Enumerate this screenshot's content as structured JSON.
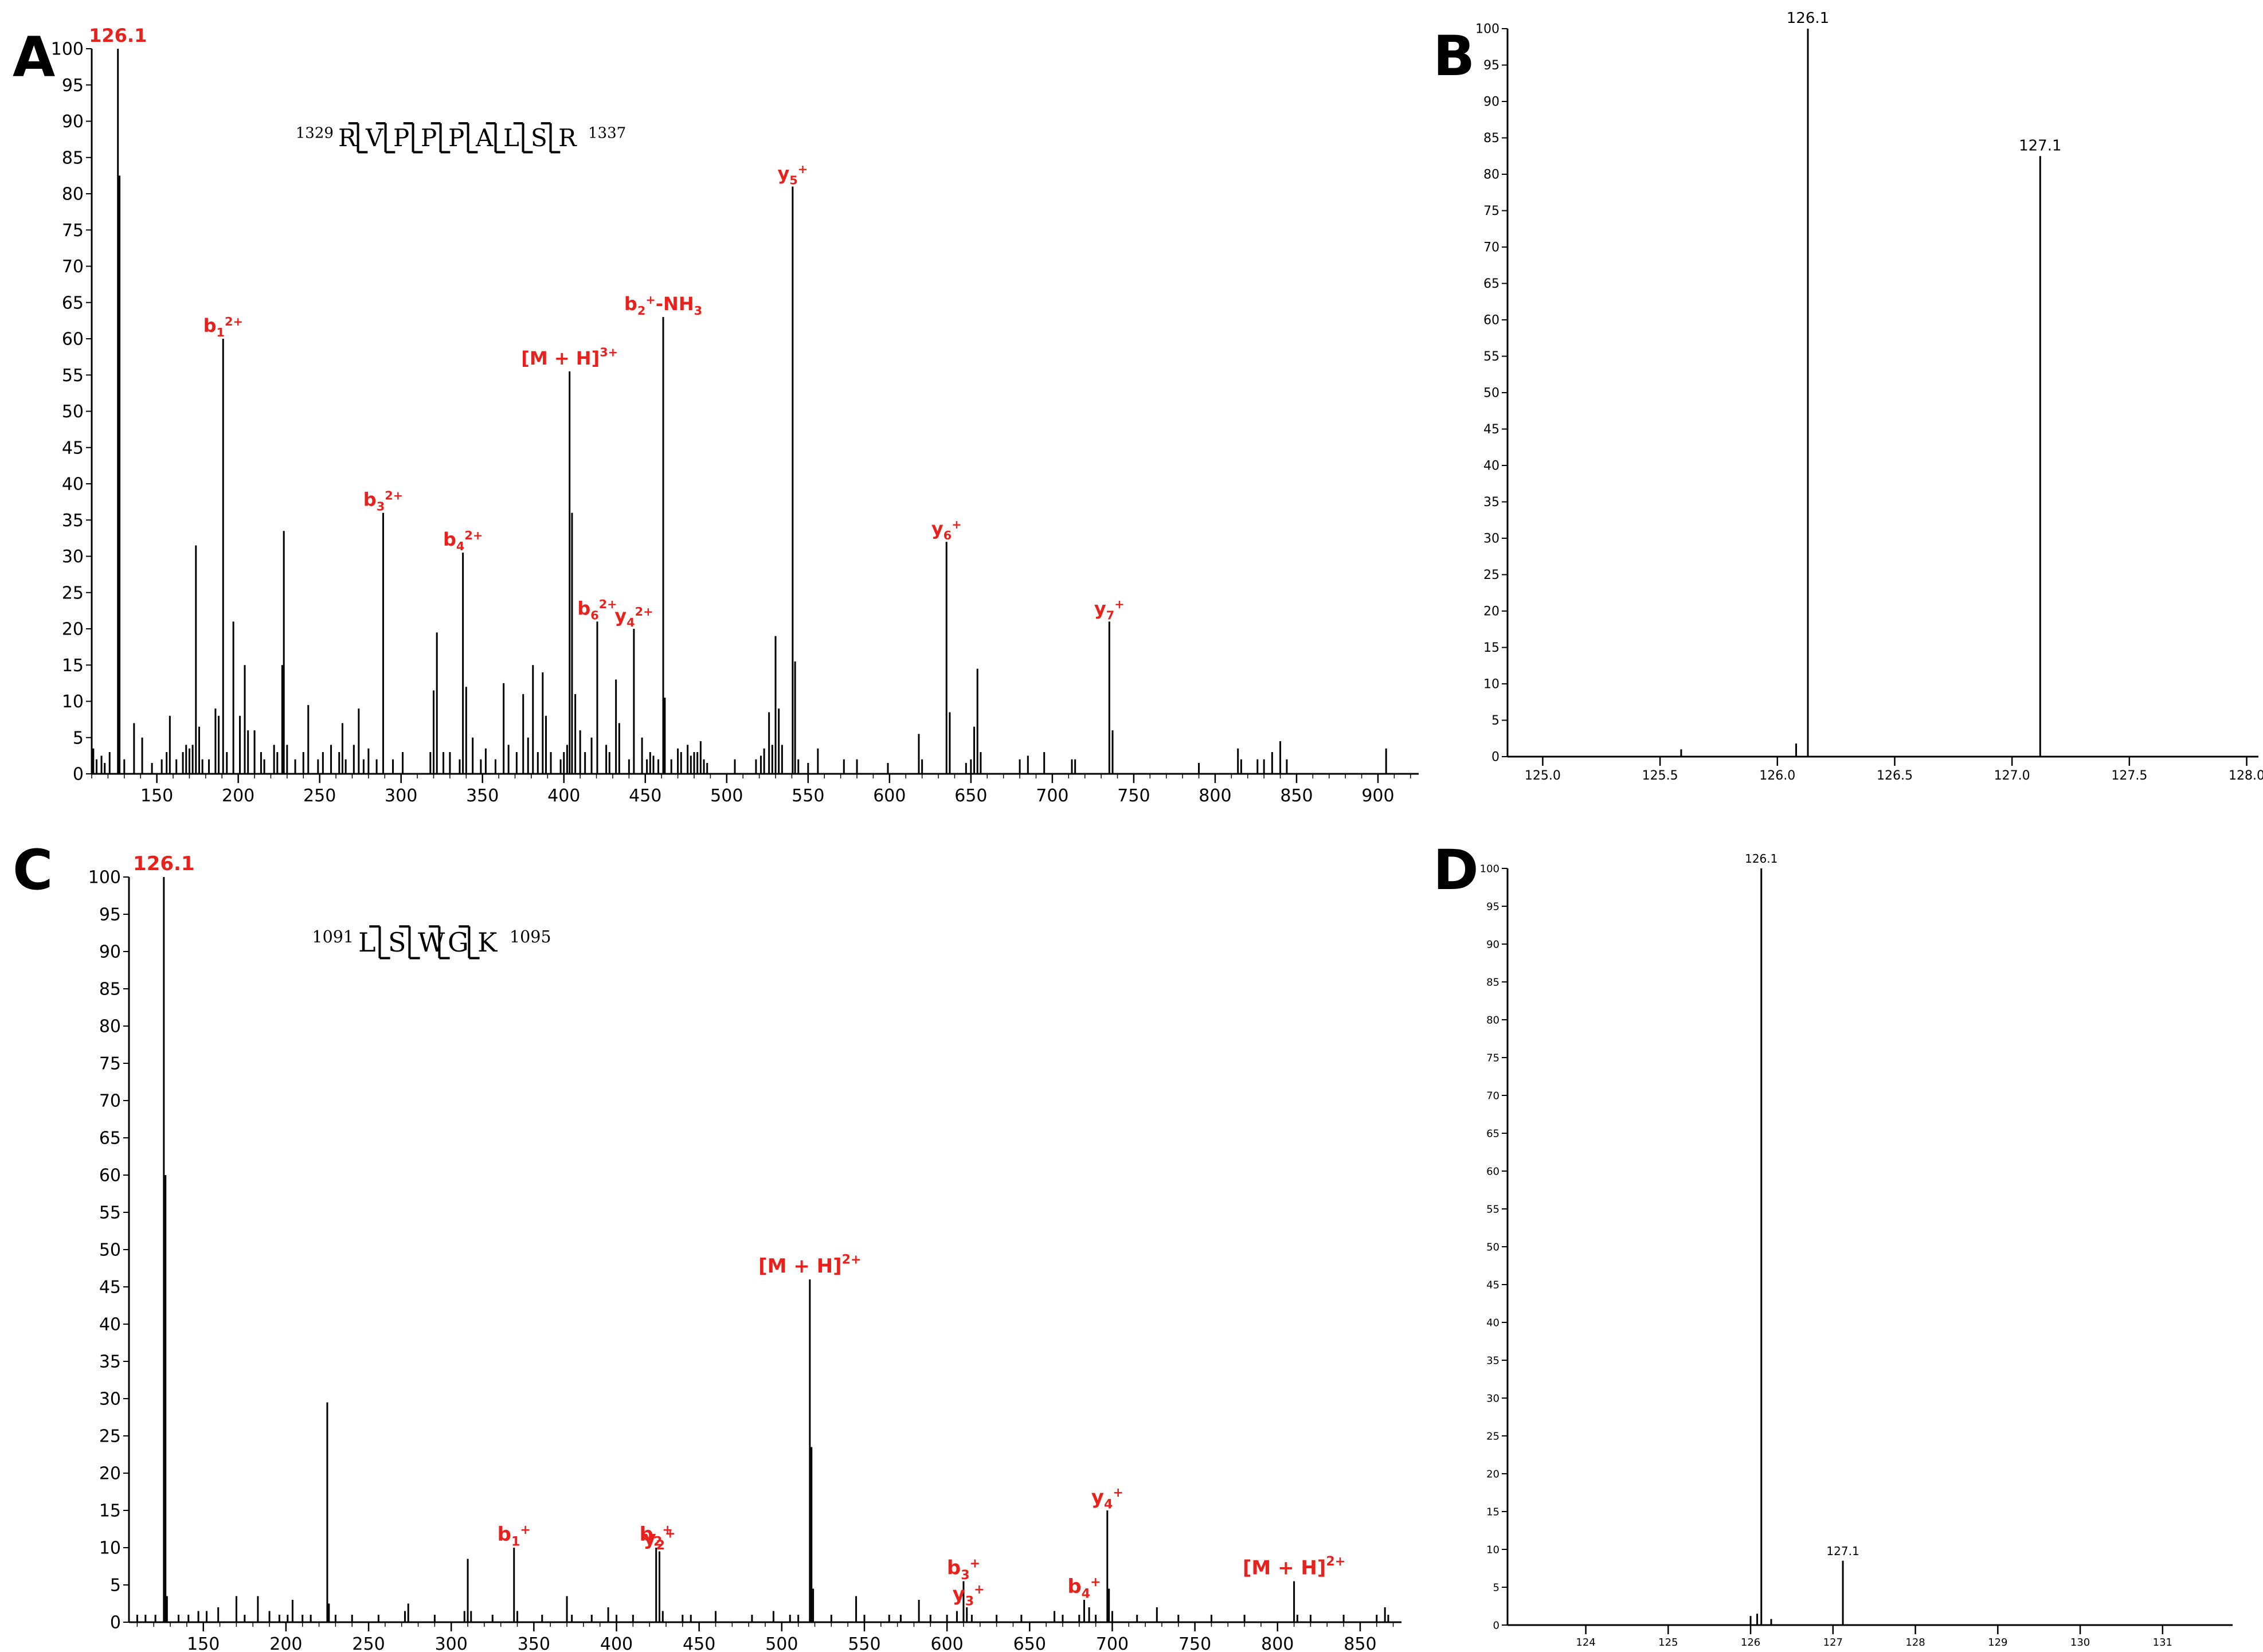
{
  "panel_letters": [
    "A",
    "B",
    "C",
    "D"
  ],
  "chart_data": [
    {
      "panel": "A",
      "type": "bar",
      "xlim": [
        110,
        925
      ],
      "ylim": [
        0,
        100
      ],
      "xticks": [
        150,
        200,
        250,
        300,
        350,
        400,
        450,
        500,
        550,
        600,
        650,
        700,
        750,
        800,
        850,
        900
      ],
      "yticks": [
        0,
        5,
        10,
        15,
        20,
        25,
        30,
        35,
        40,
        45,
        50,
        55,
        60,
        65,
        70,
        75,
        80,
        85,
        90,
        95,
        100
      ],
      "sequence": {
        "start": "1329",
        "end": "1337",
        "residues": [
          "R",
          "V",
          "P",
          "P",
          "P",
          "A",
          "L",
          "S",
          "R"
        ]
      },
      "peaks": [
        [
          111,
          3.5
        ],
        [
          113,
          2
        ],
        [
          116,
          2.5
        ],
        [
          118,
          1.5
        ],
        [
          121,
          3
        ],
        [
          126.1,
          100
        ],
        [
          127.1,
          82.5
        ],
        [
          130,
          2
        ],
        [
          136,
          7
        ],
        [
          141,
          5
        ],
        [
          147,
          1.5
        ],
        [
          153,
          2
        ],
        [
          156,
          3
        ],
        [
          158,
          8
        ],
        [
          162,
          2
        ],
        [
          166,
          3
        ],
        [
          168,
          4
        ],
        [
          170,
          3.5
        ],
        [
          172,
          4
        ],
        [
          174,
          31.5
        ],
        [
          176,
          6.5
        ],
        [
          178,
          2
        ],
        [
          182,
          2
        ],
        [
          186,
          9
        ],
        [
          188,
          8
        ],
        [
          190.7,
          60
        ],
        [
          193,
          3
        ],
        [
          197,
          21
        ],
        [
          201,
          8
        ],
        [
          204,
          15
        ],
        [
          206,
          6
        ],
        [
          210,
          6
        ],
        [
          214,
          3
        ],
        [
          216,
          2
        ],
        [
          222,
          4
        ],
        [
          224,
          3
        ],
        [
          227,
          15
        ],
        [
          228,
          33.5
        ],
        [
          230,
          4
        ],
        [
          235,
          2
        ],
        [
          240,
          3
        ],
        [
          243,
          9.5
        ],
        [
          249,
          2
        ],
        [
          252,
          3
        ],
        [
          257,
          4
        ],
        [
          262,
          3
        ],
        [
          264,
          7
        ],
        [
          266,
          2
        ],
        [
          271,
          4
        ],
        [
          274,
          9
        ],
        [
          277,
          2
        ],
        [
          280,
          3.5
        ],
        [
          285,
          2
        ],
        [
          289,
          36
        ],
        [
          295,
          2
        ],
        [
          301,
          3
        ],
        [
          318,
          3
        ],
        [
          320,
          11.5
        ],
        [
          322,
          19.5
        ],
        [
          326,
          3
        ],
        [
          330,
          3
        ],
        [
          336,
          2
        ],
        [
          338,
          30.5
        ],
        [
          340,
          12
        ],
        [
          344,
          5
        ],
        [
          349,
          2
        ],
        [
          352,
          3.5
        ],
        [
          358,
          2
        ],
        [
          363,
          12.5
        ],
        [
          366,
          4
        ],
        [
          371,
          3
        ],
        [
          375,
          11
        ],
        [
          378,
          5
        ],
        [
          381,
          15
        ],
        [
          384,
          3
        ],
        [
          387,
          14
        ],
        [
          389,
          8
        ],
        [
          392,
          3
        ],
        [
          398,
          2
        ],
        [
          400,
          3
        ],
        [
          402,
          4
        ],
        [
          403.5,
          55.5
        ],
        [
          405,
          36
        ],
        [
          407,
          11
        ],
        [
          410,
          6
        ],
        [
          413,
          3
        ],
        [
          417,
          5
        ],
        [
          420.5,
          21
        ],
        [
          426,
          4
        ],
        [
          428,
          3
        ],
        [
          432,
          13
        ],
        [
          434,
          7
        ],
        [
          440,
          2
        ],
        [
          443,
          20
        ],
        [
          448,
          5
        ],
        [
          451,
          2
        ],
        [
          453,
          3
        ],
        [
          455,
          2.5
        ],
        [
          458,
          2
        ],
        [
          461,
          63
        ],
        [
          462,
          10.5
        ],
        [
          466,
          2
        ],
        [
          470,
          3.5
        ],
        [
          472,
          3
        ],
        [
          476,
          4
        ],
        [
          478,
          2.5
        ],
        [
          480,
          3
        ],
        [
          482,
          3
        ],
        [
          484,
          4.5
        ],
        [
          486,
          2
        ],
        [
          488,
          1.5
        ],
        [
          505,
          2
        ],
        [
          518,
          2
        ],
        [
          521,
          2.5
        ],
        [
          523,
          3.5
        ],
        [
          526,
          8.5
        ],
        [
          528,
          4
        ],
        [
          530,
          19
        ],
        [
          532,
          9
        ],
        [
          534,
          4
        ],
        [
          540.5,
          81
        ],
        [
          542,
          15.5
        ],
        [
          544,
          2
        ],
        [
          550,
          1.5
        ],
        [
          556,
          3.5
        ],
        [
          572,
          2
        ],
        [
          580,
          2
        ],
        [
          599,
          1.5
        ],
        [
          618,
          5.5
        ],
        [
          620,
          2
        ],
        [
          635,
          32
        ],
        [
          637,
          8.5
        ],
        [
          647,
          1.5
        ],
        [
          650,
          2
        ],
        [
          652,
          6.5
        ],
        [
          654,
          14.5
        ],
        [
          656,
          3
        ],
        [
          680,
          2
        ],
        [
          685,
          2.5
        ],
        [
          695,
          3
        ],
        [
          712,
          2
        ],
        [
          714,
          2
        ],
        [
          735,
          21
        ],
        [
          737,
          6
        ],
        [
          790,
          1.5
        ],
        [
          814,
          3.5
        ],
        [
          816,
          2
        ],
        [
          826,
          2
        ],
        [
          830,
          2
        ],
        [
          835,
          3
        ],
        [
          840,
          4.5
        ],
        [
          844,
          2
        ],
        [
          905,
          3.5
        ]
      ],
      "annotations": [
        {
          "mz": 126.1,
          "label": "126.1",
          "sup": ""
        },
        {
          "mz": 190.7,
          "label": "b1",
          "sup": "2+"
        },
        {
          "mz": 289,
          "label": "b3",
          "sup": "2+"
        },
        {
          "mz": 338,
          "label": "b4",
          "sup": "2+"
        },
        {
          "mz": 403.5,
          "label": "[M + H]",
          "sup": "3+"
        },
        {
          "mz": 420.5,
          "label": "b6",
          "sup": "2+"
        },
        {
          "mz": 443,
          "label": "y4",
          "sup": "2+"
        },
        {
          "mz": 461,
          "label": "b2",
          "sup": "+",
          "suffix": "-NH3"
        },
        {
          "mz": 540.5,
          "label": "y5",
          "sup": "+"
        },
        {
          "mz": 635,
          "label": "y6",
          "sup": "+"
        },
        {
          "mz": 735,
          "label": "y7",
          "sup": "+"
        }
      ]
    },
    {
      "panel": "B",
      "type": "bar",
      "xlim": [
        124.85,
        128.05
      ],
      "ylim": [
        0,
        100
      ],
      "xticks": [
        125.0,
        125.5,
        126.0,
        126.5,
        127.0,
        127.5,
        128.0
      ],
      "xtick_labels": [
        "125.0",
        "125.5",
        "126.0",
        "126.5",
        "127.0",
        "127.5",
        "128.0"
      ],
      "yticks": [
        0,
        5,
        10,
        15,
        20,
        25,
        30,
        35,
        40,
        45,
        50,
        55,
        60,
        65,
        70,
        75,
        80,
        85,
        90,
        95,
        100
      ],
      "peaks": [
        [
          125.59,
          1
        ],
        [
          126.08,
          1.8
        ],
        [
          126.13,
          100
        ],
        [
          127.12,
          82.5
        ]
      ],
      "peak_labels": [
        {
          "mz": 126.13,
          "text": "126.1"
        },
        {
          "mz": 127.12,
          "text": "127.1"
        }
      ]
    },
    {
      "panel": "C",
      "type": "bar",
      "xlim": [
        105,
        875
      ],
      "ylim": [
        0,
        100
      ],
      "xticks": [
        150,
        200,
        250,
        300,
        350,
        400,
        450,
        500,
        550,
        600,
        650,
        700,
        750,
        800,
        850
      ],
      "yticks": [
        0,
        5,
        10,
        15,
        20,
        25,
        30,
        35,
        40,
        45,
        50,
        55,
        60,
        65,
        70,
        75,
        80,
        85,
        90,
        95,
        100
      ],
      "sequence": {
        "start": "1091",
        "end": "1095",
        "residues": [
          "L",
          "S",
          "W",
          "G",
          "K"
        ]
      },
      "peaks": [
        [
          110,
          1
        ],
        [
          115,
          1
        ],
        [
          121,
          1
        ],
        [
          126.1,
          100
        ],
        [
          127.1,
          60
        ],
        [
          128,
          3.5
        ],
        [
          135,
          1
        ],
        [
          141,
          1
        ],
        [
          147,
          1.5
        ],
        [
          152,
          1.5
        ],
        [
          159,
          2
        ],
        [
          170,
          3.5
        ],
        [
          175,
          1
        ],
        [
          183,
          3.5
        ],
        [
          190,
          1.5
        ],
        [
          196,
          1
        ],
        [
          201,
          1
        ],
        [
          204,
          3
        ],
        [
          210,
          1
        ],
        [
          215,
          1
        ],
        [
          225,
          29.5
        ],
        [
          226,
          2.5
        ],
        [
          230,
          1
        ],
        [
          240,
          1
        ],
        [
          256,
          1
        ],
        [
          272,
          1.5
        ],
        [
          274,
          2.5
        ],
        [
          290,
          1
        ],
        [
          308,
          1.5
        ],
        [
          310,
          8.5
        ],
        [
          312,
          1.5
        ],
        [
          325,
          1
        ],
        [
          338,
          10
        ],
        [
          340,
          1.5
        ],
        [
          355,
          1
        ],
        [
          370,
          3.5
        ],
        [
          373,
          1
        ],
        [
          385,
          1
        ],
        [
          395,
          2
        ],
        [
          400,
          1
        ],
        [
          410,
          1
        ],
        [
          424,
          10
        ],
        [
          426,
          9.5
        ],
        [
          428,
          1.5
        ],
        [
          440,
          1
        ],
        [
          445,
          1
        ],
        [
          460,
          1.5
        ],
        [
          482,
          1
        ],
        [
          495,
          1.5
        ],
        [
          505,
          1
        ],
        [
          510,
          1
        ],
        [
          517,
          46
        ],
        [
          518,
          23.5
        ],
        [
          519,
          4.5
        ],
        [
          530,
          1
        ],
        [
          545,
          3.5
        ],
        [
          550,
          1
        ],
        [
          565,
          1
        ],
        [
          572,
          1
        ],
        [
          583,
          3
        ],
        [
          590,
          1
        ],
        [
          600,
          1
        ],
        [
          606,
          1.5
        ],
        [
          610,
          5.5
        ],
        [
          612,
          2
        ],
        [
          615,
          1
        ],
        [
          630,
          1
        ],
        [
          645,
          1
        ],
        [
          665,
          1.5
        ],
        [
          670,
          1
        ],
        [
          680,
          1
        ],
        [
          683,
          3
        ],
        [
          686,
          2
        ],
        [
          690,
          1
        ],
        [
          697,
          15
        ],
        [
          698,
          4.5
        ],
        [
          700,
          1.5
        ],
        [
          715,
          1
        ],
        [
          727,
          2
        ],
        [
          740,
          1
        ],
        [
          760,
          1
        ],
        [
          780,
          1
        ],
        [
          810,
          5.5
        ],
        [
          812,
          1
        ],
        [
          820,
          1
        ],
        [
          840,
          1
        ],
        [
          860,
          1
        ],
        [
          865,
          2
        ],
        [
          867,
          1
        ]
      ],
      "annotations": [
        {
          "mz": 126.1,
          "label": "126.1",
          "sup": ""
        },
        {
          "mz": 338,
          "label": "b1",
          "sup": "+"
        },
        {
          "mz": 424,
          "label": "b2",
          "sup": "+"
        },
        {
          "mz": 426,
          "label": "y2",
          "sup": "+"
        },
        {
          "mz": 517,
          "label": "[M + H]",
          "sup": "2+"
        },
        {
          "mz": 610,
          "label": "b3",
          "sup": "+"
        },
        {
          "mz": 613,
          "label": "y3",
          "sup": "+"
        },
        {
          "mz": 683,
          "label": "b4",
          "sup": "+"
        },
        {
          "mz": 697,
          "label": "y4",
          "sup": "+"
        },
        {
          "mz": 810,
          "label": "[M + H]",
          "sup": "2+"
        }
      ]
    },
    {
      "panel": "D",
      "type": "bar",
      "xlim": [
        123.05,
        131.85
      ],
      "ylim": [
        0,
        100
      ],
      "xticks": [
        124,
        125,
        126,
        127,
        128,
        129,
        130,
        131
      ],
      "xtick_labels": [
        "124",
        "125",
        "126",
        "127",
        "128",
        "129",
        "130",
        "131"
      ],
      "yticks": [
        0,
        5,
        10,
        15,
        20,
        25,
        30,
        35,
        40,
        45,
        50,
        55,
        60,
        65,
        70,
        75,
        80,
        85,
        90,
        95,
        100
      ],
      "peaks": [
        [
          126.0,
          1.2
        ],
        [
          126.08,
          1.5
        ],
        [
          126.13,
          100
        ],
        [
          126.25,
          0.8
        ],
        [
          127.12,
          8.5
        ]
      ],
      "peak_labels": [
        {
          "mz": 126.13,
          "text": "126.1"
        },
        {
          "mz": 127.12,
          "text": "127.1"
        }
      ]
    }
  ]
}
